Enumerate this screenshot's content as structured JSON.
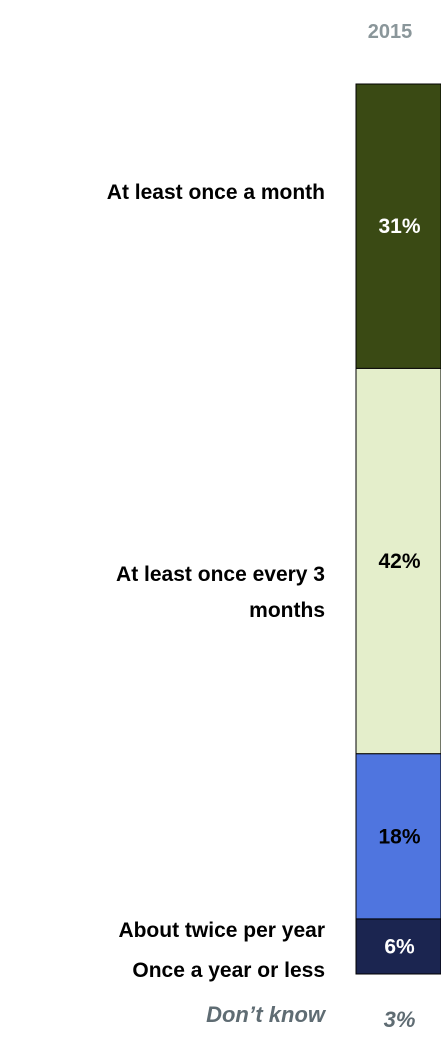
{
  "chart_data": {
    "type": "bar",
    "stacked": true,
    "orientation": "vertical",
    "column_label": "2015",
    "categories": [
      "At least once a month",
      "At least once every 3 months",
      "About twice per year",
      "Once a year or less",
      "Don’t know"
    ],
    "series": [
      {
        "category": "At least once a month",
        "value": 31,
        "label": "31%",
        "color": "#3a4a14"
      },
      {
        "category": "At least once every 3 months",
        "value": 42,
        "label": "42%",
        "color": "#e4eecb"
      },
      {
        "category": "About twice per year",
        "value": 18,
        "label": "18%",
        "color": "#4f75df"
      },
      {
        "category": "Once a year or less",
        "value": 6,
        "label": "6%",
        "color": "#1b2550"
      },
      {
        "category": "Don’t know",
        "value": 3,
        "label": "3%",
        "color": null
      }
    ],
    "ylim": [
      0,
      100
    ],
    "colors": {
      "header_text": "#8a969a",
      "category_text": "#000000",
      "dont_know_text": "#5f6c73",
      "dark_label_text": "#ffffff",
      "light_label_text": "#000000"
    }
  }
}
